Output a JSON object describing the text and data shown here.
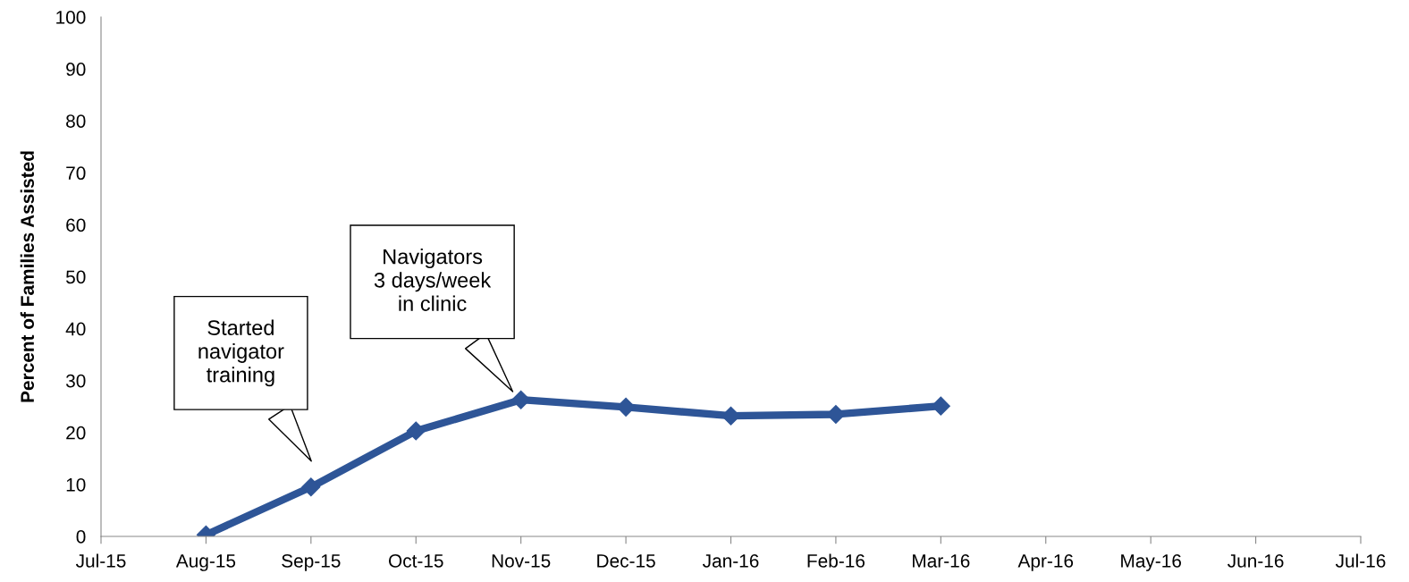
{
  "chart_data": {
    "type": "line",
    "ylabel": "Percent of Families Assisted",
    "categories": [
      "Jul-15",
      "Aug-15",
      "Sep-15",
      "Oct-15",
      "Nov-15",
      "Dec-15",
      "Jan-16",
      "Feb-16",
      "Mar-16",
      "Apr-16",
      "May-16",
      "Jun-16",
      "Jul-16"
    ],
    "series": [
      {
        "color": "#2e5597",
        "values": [
          null,
          0.3,
          9.5,
          20.3,
          26.3,
          24.9,
          23.2,
          23.5,
          25.1,
          null,
          null,
          null,
          null
        ]
      }
    ],
    "ylim": [
      0,
      100
    ],
    "yticks": [
      0,
      10,
      20,
      30,
      40,
      50,
      60,
      70,
      80,
      90,
      100
    ],
    "marker": "diamond",
    "line_style": "solid",
    "grid": false,
    "legend": false,
    "annotations": [
      "Started\nnavigator\ntraining",
      "Navigators\n3 days/week\nin clinic"
    ]
  }
}
